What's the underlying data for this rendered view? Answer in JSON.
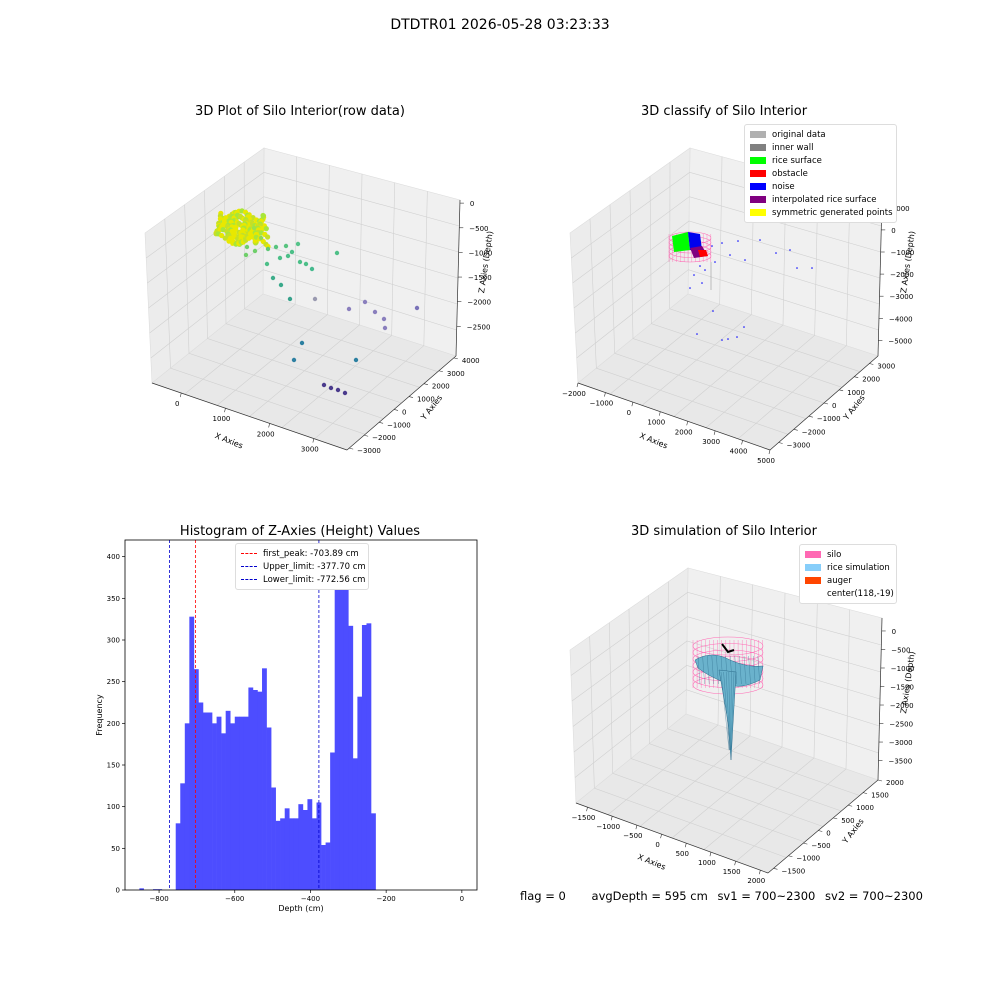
{
  "suptitle": "DTDTR01 2026-05-28 03:23:33",
  "colors": {
    "hist_bar": "#4d4dff",
    "peak_line": "#ff0000",
    "limit_line": "#0000cc",
    "pane": "#f0f0f0",
    "silo": "#ff69b4",
    "rice": "#87cefa",
    "auger": "#ff4500"
  },
  "panel1": {
    "title": "3D Plot of Silo Interior(row data)",
    "xlabel": "X Axies",
    "ylabel": "Y Axies",
    "zlabel": "Z Axies (Depth)",
    "xticks": [
      "0",
      "1000",
      "2000",
      "3000"
    ],
    "yticks": [
      "4000",
      "3000",
      "2000",
      "1000",
      "0",
      "−1000",
      "−2000",
      "−3000"
    ],
    "zticks": [
      "0",
      "−500",
      "−1000",
      "−1500",
      "−2000",
      "−2500"
    ]
  },
  "panel2": {
    "title": "3D classify of Silo Interior",
    "xlabel": "X Axies",
    "ylabel": "Y Axies",
    "zlabel": "Z Axies (Depth)",
    "xticks": [
      "−2000",
      "−1000",
      "0",
      "1000",
      "2000",
      "3000",
      "4000",
      "5000"
    ],
    "yticks": [
      "3000",
      "2000",
      "1000",
      "0",
      "−1000",
      "−2000",
      "−3000"
    ],
    "zticks": [
      "1000",
      "0",
      "−1000",
      "−2000",
      "−3000",
      "−4000",
      "−5000"
    ],
    "legend": [
      {
        "label": "original data",
        "color": "#b0b0b0"
      },
      {
        "label": "inner wall",
        "color": "#808080"
      },
      {
        "label": "rice surface",
        "color": "#00ff00"
      },
      {
        "label": "obstacle",
        "color": "#ff0000"
      },
      {
        "label": "noise",
        "color": "#0000ff"
      },
      {
        "label": "interpolated rice surface",
        "color": "#800080"
      },
      {
        "label": "symmetric generated points",
        "color": "#ffff00"
      }
    ]
  },
  "panel4": {
    "title": "3D simulation of Silo Interior",
    "xlabel": "X Axies",
    "ylabel": "Y Axies",
    "zlabel": "Z Axies (Depth)",
    "xticks": [
      "−1500",
      "−1000",
      "−500",
      "0",
      "500",
      "1000",
      "1500",
      "2000"
    ],
    "yticks": [
      "2000",
      "1500",
      "1000",
      "500",
      "0",
      "−500",
      "−1000",
      "−1500"
    ],
    "zticks": [
      "0",
      "−500",
      "−1000",
      "−1500",
      "−2000",
      "−2500",
      "−3000",
      "−3500"
    ],
    "legend": [
      {
        "label": "silo",
        "color": "#ff69b4"
      },
      {
        "label": "rice simulation",
        "color": "#87cefa"
      },
      {
        "label": "auger",
        "color": "#ff4500"
      },
      {
        "label": "center(118,-19)",
        "color": ""
      }
    ]
  },
  "chart_data": {
    "type": "bar",
    "title": "Histogram of Z-Axies (Height) Values",
    "xlabel": "Depth (cm)",
    "ylabel": "Frequency",
    "xlim": [
      -890,
      40
    ],
    "ylim": [
      0,
      420
    ],
    "xticks": [
      -800,
      -600,
      -400,
      -200,
      0
    ],
    "xtick_labels": [
      "−800",
      "−600",
      "−400",
      "−200",
      "0"
    ],
    "yticks": [
      0,
      50,
      100,
      150,
      200,
      250,
      300,
      350,
      400
    ],
    "bin_width": 12.0,
    "bin_start": -756,
    "values": [
      80,
      128,
      200,
      328,
      265,
      225,
      213,
      213,
      200,
      208,
      188,
      215,
      200,
      208,
      208,
      208,
      243,
      240,
      238,
      266,
      195,
      123,
      83,
      86,
      98,
      86,
      86,
      103,
      96,
      109,
      86,
      105,
      54,
      57,
      165,
      400,
      398,
      370,
      317,
      158,
      232,
      318,
      320,
      92
    ],
    "outliers": [
      {
        "x": -852,
        "v": 2
      },
      {
        "x": -816,
        "v": 1
      },
      {
        "x": -804,
        "v": 1
      }
    ],
    "vlines": [
      {
        "x": -703.89,
        "label": "first_peak: -703.89 cm",
        "kind": "peak"
      },
      {
        "x": -377.7,
        "label": "Upper_limit: -377.70 cm",
        "kind": "limit"
      },
      {
        "x": -772.56,
        "label": "Lower_limit: -772.56 cm",
        "kind": "limit"
      }
    ],
    "legend_position": "upper-center"
  },
  "footer": {
    "flag": "flag = 0",
    "avg": "avgDepth = 595 cm",
    "sv1": "sv1 = 700~2300",
    "sv2": "sv2 = 700~2300"
  }
}
